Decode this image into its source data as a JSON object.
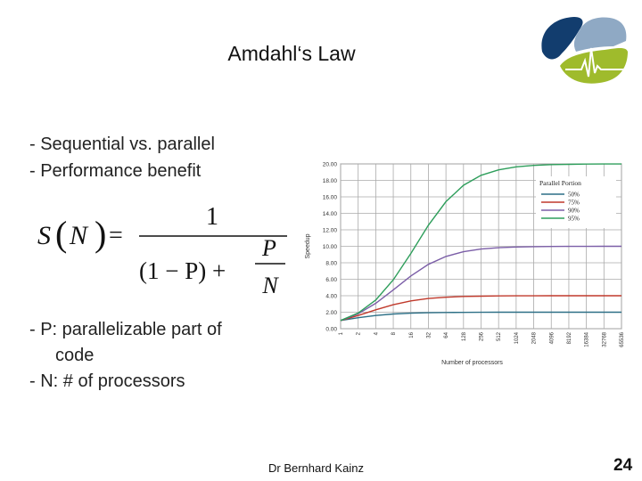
{
  "slide": {
    "title": "Amdahl‘s Law",
    "bullets_top": [
      "- Sequential vs. parallel",
      "- Performance benefit"
    ],
    "bullets_bottom": [
      "- P: parallelizable part of",
      "code",
      "- N: # of processors"
    ],
    "formula": {
      "lhs_func": "S",
      "lhs_var": "N",
      "equals": "=",
      "numerator": "1",
      "denom_left": "(1 − P) +",
      "frac_num": "P",
      "frac_den": "N"
    },
    "footer_author": "Dr Bernhard Kainz",
    "page_number": "24"
  },
  "logo": {
    "colors": {
      "dark_blue": "#123d6e",
      "light_blue": "#8fa9c4",
      "green": "#9fbb2c"
    }
  },
  "chart_data": {
    "type": "line",
    "y_axis_title": "Speedup",
    "x_axis_title": "Number of processors",
    "x_ticks": [
      "1",
      "2",
      "4",
      "8",
      "16",
      "32",
      "64",
      "128",
      "256",
      "512",
      "1024",
      "2048",
      "4096",
      "8192",
      "16384",
      "32768",
      "65536"
    ],
    "y_ticks": [
      "0.00",
      "2.00",
      "4.00",
      "6.00",
      "8.00",
      "10.00",
      "12.00",
      "14.00",
      "16.00",
      "18.00",
      "20.00"
    ],
    "ylim": [
      0,
      20
    ],
    "grid": true,
    "legend_title": "Parallel Portion",
    "legend_position": "top-right",
    "series": [
      {
        "name": "50%",
        "color": "#2c6f86",
        "values": [
          1.0,
          1.33,
          1.6,
          1.78,
          1.88,
          1.94,
          1.97,
          1.98,
          1.99,
          2.0,
          2.0,
          2.0,
          2.0,
          2.0,
          2.0,
          2.0,
          2.0
        ]
      },
      {
        "name": "75%",
        "color": "#c0392b",
        "values": [
          1.0,
          1.6,
          2.29,
          2.91,
          3.37,
          3.66,
          3.82,
          3.91,
          3.95,
          3.98,
          3.99,
          3.99,
          4.0,
          4.0,
          4.0,
          4.0,
          4.0
        ]
      },
      {
        "name": "90%",
        "color": "#7b5ea7",
        "values": [
          1.0,
          1.82,
          3.08,
          4.71,
          6.4,
          7.8,
          8.77,
          9.34,
          9.66,
          9.83,
          9.91,
          9.96,
          9.98,
          9.99,
          9.99,
          10.0,
          10.0
        ]
      },
      {
        "name": "95%",
        "color": "#2e9e5b",
        "values": [
          1.0,
          1.9,
          3.48,
          5.93,
          9.14,
          12.55,
          15.42,
          17.41,
          18.62,
          19.28,
          19.64,
          19.82,
          19.91,
          19.95,
          19.98,
          19.99,
          19.99
        ]
      }
    ]
  }
}
